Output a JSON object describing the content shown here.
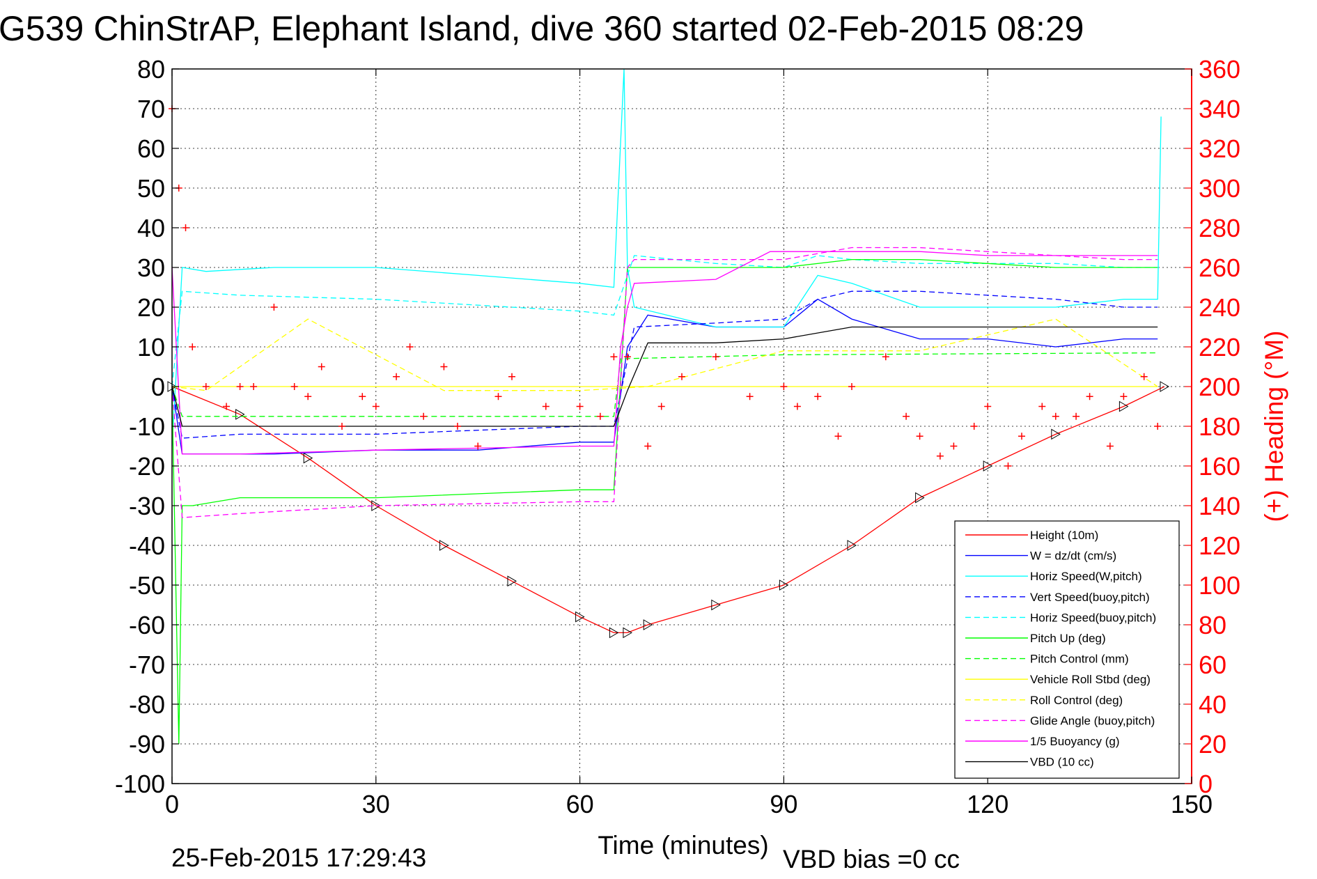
{
  "chart_data": {
    "type": "line",
    "title": "G539 ChinStrAP, Elephant Island, dive 360 started 02-Feb-2015 08:29",
    "xlabel": "Time (minutes)",
    "ylabel_right": "(+) Heading (°M)",
    "xlim": [
      0,
      150
    ],
    "ylim": [
      -100,
      80
    ],
    "ylim_right": [
      0,
      360
    ],
    "x_ticks": [
      0,
      30,
      60,
      90,
      120,
      150
    ],
    "y_ticks": [
      80,
      70,
      60,
      50,
      40,
      30,
      20,
      10,
      0,
      -10,
      -20,
      -30,
      -40,
      -50,
      -60,
      -70,
      -80,
      -90,
      -100
    ],
    "y_ticks_right": [
      360,
      340,
      320,
      300,
      280,
      260,
      240,
      220,
      200,
      180,
      160,
      140,
      120,
      100,
      80,
      60,
      40,
      20,
      0
    ],
    "grid": true,
    "legend_position": "bottom-right",
    "series": [
      {
        "name": "Height (10m)",
        "color": "#ff0000",
        "style": "solid",
        "x": [
          0,
          10,
          20,
          30,
          40,
          50,
          60,
          65,
          67,
          70,
          80,
          90,
          100,
          110,
          120,
          130,
          140,
          146
        ],
        "y": [
          0,
          -7,
          -18,
          -30,
          -40,
          -49,
          -58,
          -62,
          -62,
          -60,
          -55,
          -50,
          -40,
          -28,
          -20,
          -12,
          -5,
          0
        ]
      },
      {
        "name": "W = dz/dt (cm/s)",
        "color": "#0000ff",
        "style": "solid",
        "x": [
          0,
          1.5,
          5,
          15,
          30,
          45,
          60,
          65,
          67,
          70,
          80,
          90,
          95,
          100,
          110,
          120,
          130,
          140,
          145
        ],
        "y": [
          0,
          -17,
          -17,
          -17,
          -16,
          -16,
          -14,
          -14,
          10,
          18,
          15,
          15,
          22,
          17,
          12,
          12,
          10,
          12,
          12
        ]
      },
      {
        "name": "Horiz Speed(W,pitch)",
        "color": "#00ffff",
        "style": "solid",
        "x": [
          0,
          1.5,
          5,
          15,
          30,
          45,
          60,
          65,
          66.5,
          67,
          68,
          80,
          90,
          95,
          100,
          110,
          120,
          130,
          140,
          145,
          145.5
        ],
        "y": [
          -15,
          30,
          29,
          30,
          30,
          28,
          26,
          25,
          80,
          30,
          20,
          15,
          15,
          28,
          26,
          20,
          20,
          20,
          22,
          22,
          68
        ]
      },
      {
        "name": "Vert Speed(buoy,pitch)",
        "color": "#0000ff",
        "style": "dashed",
        "x": [
          0,
          1.5,
          10,
          30,
          60,
          65,
          68,
          80,
          90,
          95,
          100,
          110,
          120,
          130,
          140,
          145
        ],
        "y": [
          0,
          -13,
          -12,
          -12,
          -10,
          -10,
          15,
          16,
          17,
          22,
          24,
          24,
          23,
          22,
          20,
          20
        ]
      },
      {
        "name": "Horiz Speed(buoy,pitch)",
        "color": "#00ffff",
        "style": "dashed",
        "x": [
          0,
          1.5,
          10,
          30,
          60,
          65,
          68,
          80,
          90,
          95,
          100,
          110,
          120,
          130,
          140,
          145
        ],
        "y": [
          0,
          24,
          23,
          22,
          19,
          18,
          33,
          31,
          30,
          33,
          32,
          31,
          31,
          31,
          30,
          30
        ]
      },
      {
        "name": "Pitch Up (deg)",
        "color": "#00ff00",
        "style": "solid",
        "x": [
          0,
          1,
          1.5,
          3,
          10,
          30,
          60,
          65,
          67,
          68,
          80,
          90,
          100,
          110,
          120,
          130,
          140,
          145
        ],
        "y": [
          0,
          -90,
          -30,
          -30,
          -28,
          -28,
          -26,
          -26,
          30,
          30,
          30,
          30,
          32,
          32,
          31,
          30,
          30,
          30
        ]
      },
      {
        "name": "Pitch Control (mm)",
        "color": "#00ff00",
        "style": "dashed",
        "x": [
          0,
          1.5,
          65,
          66,
          90,
          145
        ],
        "y": [
          0,
          -7.5,
          -7.5,
          7,
          8,
          8.5
        ]
      },
      {
        "name": "Vehicle Roll Stbd (deg)",
        "color": "#ffff00",
        "style": "solid",
        "x": [
          0,
          5,
          20,
          40,
          60,
          70,
          90,
          110,
          130,
          145
        ],
        "y": [
          0,
          0,
          0,
          0,
          0,
          0,
          0,
          0,
          0,
          0
        ]
      },
      {
        "name": "Roll Control (deg)",
        "color": "#ffff00",
        "style": "dashed",
        "x": [
          0,
          5,
          20,
          40,
          60,
          70,
          90,
          110,
          130,
          145
        ],
        "y": [
          0,
          -1,
          17,
          -1,
          -1,
          0,
          9,
          9,
          17,
          0
        ]
      },
      {
        "name": "Glide Angle (buoy,pitch)",
        "color": "#ff00ff",
        "style": "dashed",
        "x": [
          0,
          1.5,
          10,
          30,
          60,
          65,
          67,
          68,
          80,
          90,
          100,
          110,
          120,
          130,
          140,
          145
        ],
        "y": [
          0,
          -33,
          -32,
          -30,
          -29,
          -29,
          30,
          32,
          32,
          32,
          35,
          35,
          34,
          33,
          32,
          32
        ]
      },
      {
        "name": "1/5 Buoyancy (g)",
        "color": "#ff00ff",
        "style": "solid",
        "x": [
          0,
          1.5,
          10,
          30,
          60,
          65,
          66,
          67,
          68,
          80,
          88,
          90,
          100,
          110,
          120,
          130,
          140,
          145
        ],
        "y": [
          30,
          -17,
          -17,
          -16,
          -15,
          -15,
          10,
          20,
          26,
          27,
          34,
          34,
          34,
          34,
          33,
          33,
          33,
          33
        ]
      },
      {
        "name": "VBD (10 cc)",
        "color": "#000000",
        "style": "solid",
        "x": [
          0,
          1.5,
          10,
          30,
          60,
          65,
          67,
          70,
          80,
          90,
          100,
          110,
          120,
          130,
          140,
          145
        ],
        "y": [
          0,
          -10,
          -10,
          -10,
          -10,
          -10,
          -1,
          11,
          11,
          12,
          15,
          15,
          15,
          15,
          15,
          15
        ]
      },
      {
        "name": "(+) Heading",
        "color": "#ff0000",
        "style": "markers",
        "axis": "right",
        "x": [
          0,
          1,
          2,
          3,
          5,
          8,
          10,
          12,
          15,
          18,
          20,
          22,
          25,
          28,
          30,
          33,
          35,
          37,
          40,
          42,
          45,
          48,
          50,
          55,
          60,
          63,
          65,
          67,
          70,
          72,
          75,
          80,
          85,
          90,
          92,
          95,
          98,
          100,
          105,
          108,
          110,
          113,
          115,
          118,
          120,
          123,
          125,
          128,
          130,
          133,
          135,
          138,
          140,
          143,
          145
        ],
        "y": [
          340,
          300,
          280,
          220,
          200,
          190,
          200,
          200,
          240,
          200,
          195,
          210,
          180,
          195,
          190,
          205,
          220,
          185,
          210,
          180,
          170,
          195,
          205,
          190,
          190,
          185,
          215,
          215,
          170,
          190,
          205,
          215,
          195,
          200,
          190,
          195,
          175,
          200,
          215,
          185,
          175,
          165,
          170,
          180,
          190,
          160,
          175,
          190,
          185,
          185,
          195,
          170,
          195,
          205,
          180
        ]
      }
    ]
  },
  "footer": {
    "timestamp": "25-Feb-2015 17:29:43",
    "vbd_bias": "VBD bias =0 cc"
  }
}
